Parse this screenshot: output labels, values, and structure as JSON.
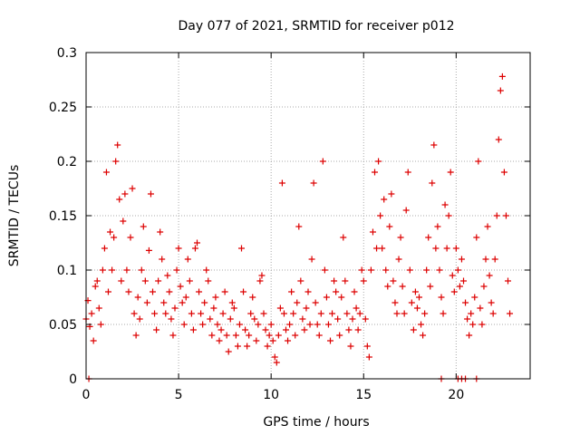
{
  "chart_data": {
    "type": "scatter",
    "title": "Day 077 of 2021, SRMTID for receiver p012",
    "xlabel": "GPS time / hours",
    "ylabel": "SRMTID / TECUs",
    "xlim": [
      0,
      24
    ],
    "ylim": [
      0,
      0.3
    ],
    "xticks": [
      0,
      5,
      10,
      15,
      20
    ],
    "xtick_labels": [
      "0",
      "5",
      "10",
      "15",
      "20"
    ],
    "yticks": [
      0,
      0.05,
      0.1,
      0.15,
      0.2,
      0.25,
      0.3
    ],
    "ytick_labels": [
      "0",
      "0.05",
      "0.1",
      "0.15",
      "0.2",
      "0.25",
      "0.3"
    ],
    "grid": true,
    "marker": "plus",
    "marker_color": "#dd0000",
    "series": [
      {
        "name": "SRMTID",
        "points": [
          [
            0.0,
            0.055
          ],
          [
            0.1,
            0.072
          ],
          [
            0.2,
            0.048
          ],
          [
            0.3,
            0.06
          ],
          [
            0.4,
            0.035
          ],
          [
            0.5,
            0.085
          ],
          [
            0.6,
            0.09
          ],
          [
            0.7,
            0.065
          ],
          [
            0.8,
            0.05
          ],
          [
            0.9,
            0.1
          ],
          [
            1.0,
            0.12
          ],
          [
            1.1,
            0.19
          ],
          [
            1.2,
            0.08
          ],
          [
            1.3,
            0.135
          ],
          [
            1.4,
            0.1
          ],
          [
            1.5,
            0.13
          ],
          [
            1.6,
            0.2
          ],
          [
            1.7,
            0.215
          ],
          [
            1.8,
            0.165
          ],
          [
            1.9,
            0.09
          ],
          [
            2.0,
            0.145
          ],
          [
            2.1,
            0.17
          ],
          [
            2.2,
            0.1
          ],
          [
            2.3,
            0.08
          ],
          [
            2.4,
            0.13
          ],
          [
            2.5,
            0.175
          ],
          [
            2.6,
            0.06
          ],
          [
            2.7,
            0.04
          ],
          [
            2.8,
            0.075
          ],
          [
            2.9,
            0.055
          ],
          [
            3.0,
            0.1
          ],
          [
            3.1,
            0.14
          ],
          [
            3.2,
            0.09
          ],
          [
            3.3,
            0.07
          ],
          [
            3.4,
            0.118
          ],
          [
            3.5,
            0.17
          ],
          [
            3.6,
            0.08
          ],
          [
            3.7,
            0.06
          ],
          [
            3.8,
            0.045
          ],
          [
            3.9,
            0.09
          ],
          [
            4.0,
            0.135
          ],
          [
            4.1,
            0.11
          ],
          [
            4.2,
            0.07
          ],
          [
            4.3,
            0.06
          ],
          [
            4.4,
            0.095
          ],
          [
            4.5,
            0.08
          ],
          [
            4.6,
            0.055
          ],
          [
            4.7,
            0.04
          ],
          [
            4.8,
            0.065
          ],
          [
            4.9,
            0.1
          ],
          [
            5.0,
            0.12
          ],
          [
            5.1,
            0.085
          ],
          [
            5.2,
            0.07
          ],
          [
            5.3,
            0.05
          ],
          [
            5.4,
            0.075
          ],
          [
            5.5,
            0.11
          ],
          [
            5.6,
            0.09
          ],
          [
            5.7,
            0.06
          ],
          [
            5.8,
            0.045
          ],
          [
            5.9,
            0.12
          ],
          [
            6.0,
            0.125
          ],
          [
            6.1,
            0.08
          ],
          [
            6.2,
            0.06
          ],
          [
            6.3,
            0.05
          ],
          [
            6.4,
            0.07
          ],
          [
            6.5,
            0.1
          ],
          [
            6.6,
            0.09
          ],
          [
            6.7,
            0.055
          ],
          [
            6.8,
            0.04
          ],
          [
            6.9,
            0.065
          ],
          [
            7.0,
            0.075
          ],
          [
            7.1,
            0.05
          ],
          [
            7.2,
            0.035
          ],
          [
            7.3,
            0.045
          ],
          [
            7.4,
            0.06
          ],
          [
            7.5,
            0.08
          ],
          [
            7.6,
            0.04
          ],
          [
            7.7,
            0.025
          ],
          [
            7.8,
            0.055
          ],
          [
            7.9,
            0.07
          ],
          [
            8.0,
            0.065
          ],
          [
            8.1,
            0.04
          ],
          [
            8.2,
            0.03
          ],
          [
            8.3,
            0.05
          ],
          [
            8.4,
            0.12
          ],
          [
            8.5,
            0.08
          ],
          [
            8.6,
            0.045
          ],
          [
            8.7,
            0.03
          ],
          [
            8.8,
            0.04
          ],
          [
            8.9,
            0.06
          ],
          [
            9.0,
            0.075
          ],
          [
            9.1,
            0.055
          ],
          [
            9.2,
            0.035
          ],
          [
            9.3,
            0.05
          ],
          [
            9.4,
            0.09
          ],
          [
            9.5,
            0.095
          ],
          [
            9.6,
            0.06
          ],
          [
            9.7,
            0.045
          ],
          [
            9.8,
            0.03
          ],
          [
            9.9,
            0.04
          ],
          [
            10.0,
            0.05
          ],
          [
            10.1,
            0.035
          ],
          [
            10.2,
            0.02
          ],
          [
            10.3,
            0.015
          ],
          [
            10.4,
            0.04
          ],
          [
            10.5,
            0.065
          ],
          [
            10.6,
            0.18
          ],
          [
            10.7,
            0.06
          ],
          [
            10.8,
            0.045
          ],
          [
            10.9,
            0.035
          ],
          [
            11.0,
            0.05
          ],
          [
            11.1,
            0.08
          ],
          [
            11.2,
            0.06
          ],
          [
            11.3,
            0.04
          ],
          [
            11.4,
            0.07
          ],
          [
            11.5,
            0.14
          ],
          [
            11.6,
            0.09
          ],
          [
            11.7,
            0.055
          ],
          [
            11.8,
            0.045
          ],
          [
            11.9,
            0.065
          ],
          [
            12.0,
            0.08
          ],
          [
            12.1,
            0.05
          ],
          [
            12.2,
            0.11
          ],
          [
            12.3,
            0.18
          ],
          [
            12.4,
            0.07
          ],
          [
            12.5,
            0.05
          ],
          [
            12.6,
            0.04
          ],
          [
            12.7,
            0.06
          ],
          [
            12.8,
            0.2
          ],
          [
            12.9,
            0.1
          ],
          [
            13.0,
            0.075
          ],
          [
            13.1,
            0.05
          ],
          [
            13.2,
            0.035
          ],
          [
            13.3,
            0.06
          ],
          [
            13.4,
            0.09
          ],
          [
            13.5,
            0.08
          ],
          [
            13.6,
            0.055
          ],
          [
            13.7,
            0.04
          ],
          [
            13.8,
            0.075
          ],
          [
            13.9,
            0.13
          ],
          [
            14.0,
            0.09
          ],
          [
            14.1,
            0.06
          ],
          [
            14.2,
            0.045
          ],
          [
            14.3,
            0.03
          ],
          [
            14.4,
            0.055
          ],
          [
            14.5,
            0.08
          ],
          [
            14.6,
            0.065
          ],
          [
            14.7,
            0.045
          ],
          [
            14.8,
            0.06
          ],
          [
            14.9,
            0.1
          ],
          [
            15.0,
            0.09
          ],
          [
            15.1,
            0.055
          ],
          [
            15.2,
            0.03
          ],
          [
            15.3,
            0.02
          ],
          [
            15.4,
            0.1
          ],
          [
            15.5,
            0.135
          ],
          [
            15.6,
            0.19
          ],
          [
            15.7,
            0.12
          ],
          [
            15.8,
            0.2
          ],
          [
            15.9,
            0.15
          ],
          [
            16.0,
            0.12
          ],
          [
            16.1,
            0.165
          ],
          [
            16.2,
            0.1
          ],
          [
            16.3,
            0.085
          ],
          [
            16.4,
            0.14
          ],
          [
            16.5,
            0.17
          ],
          [
            16.6,
            0.09
          ],
          [
            16.7,
            0.07
          ],
          [
            16.8,
            0.06
          ],
          [
            16.9,
            0.11
          ],
          [
            17.0,
            0.13
          ],
          [
            17.1,
            0.085
          ],
          [
            17.2,
            0.06
          ],
          [
            17.3,
            0.155
          ],
          [
            17.4,
            0.19
          ],
          [
            17.5,
            0.1
          ],
          [
            17.6,
            0.07
          ],
          [
            17.7,
            0.045
          ],
          [
            17.8,
            0.08
          ],
          [
            17.9,
            0.065
          ],
          [
            18.0,
            0.075
          ],
          [
            18.1,
            0.05
          ],
          [
            18.2,
            0.04
          ],
          [
            18.3,
            0.06
          ],
          [
            18.4,
            0.1
          ],
          [
            18.5,
            0.13
          ],
          [
            18.6,
            0.085
          ],
          [
            18.7,
            0.18
          ],
          [
            18.8,
            0.215
          ],
          [
            18.9,
            0.12
          ],
          [
            19.0,
            0.14
          ],
          [
            19.1,
            0.1
          ],
          [
            19.2,
            0.075
          ],
          [
            19.3,
            0.06
          ],
          [
            19.4,
            0.16
          ],
          [
            19.5,
            0.12
          ],
          [
            19.6,
            0.15
          ],
          [
            19.7,
            0.19
          ],
          [
            19.8,
            0.095
          ],
          [
            19.9,
            0.08
          ],
          [
            20.0,
            0.12
          ],
          [
            20.1,
            0.1
          ],
          [
            20.2,
            0.085
          ],
          [
            20.3,
            0.11
          ],
          [
            20.4,
            0.09
          ],
          [
            20.5,
            0.07
          ],
          [
            20.6,
            0.055
          ],
          [
            20.7,
            0.04
          ],
          [
            20.8,
            0.06
          ],
          [
            20.9,
            0.05
          ],
          [
            21.0,
            0.075
          ],
          [
            21.1,
            0.13
          ],
          [
            21.2,
            0.2
          ],
          [
            21.3,
            0.065
          ],
          [
            21.4,
            0.05
          ],
          [
            21.5,
            0.085
          ],
          [
            21.6,
            0.11
          ],
          [
            21.7,
            0.14
          ],
          [
            21.8,
            0.095
          ],
          [
            21.9,
            0.07
          ],
          [
            22.0,
            0.06
          ],
          [
            22.1,
            0.11
          ],
          [
            22.2,
            0.15
          ],
          [
            22.3,
            0.22
          ],
          [
            22.4,
            0.265
          ],
          [
            22.5,
            0.278
          ],
          [
            22.6,
            0.19
          ],
          [
            22.7,
            0.15
          ],
          [
            22.8,
            0.09
          ],
          [
            22.9,
            0.06
          ],
          [
            0.15,
            0.0
          ],
          [
            19.2,
            0.0
          ],
          [
            20.1,
            0.0
          ],
          [
            20.3,
            0.0
          ],
          [
            20.5,
            0.0
          ],
          [
            21.1,
            0.0
          ]
        ]
      }
    ]
  }
}
